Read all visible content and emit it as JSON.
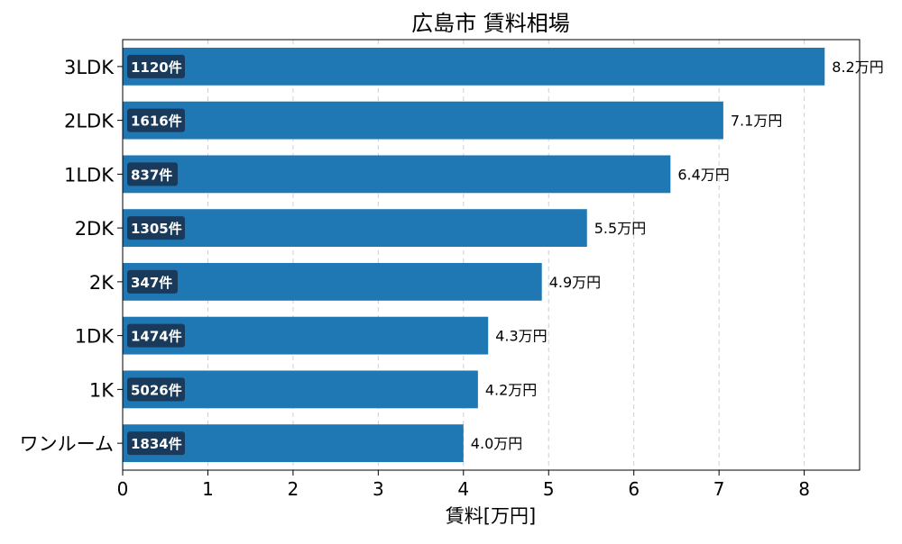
{
  "chart_data": {
    "type": "bar",
    "orientation": "horizontal",
    "title": "広島市 賃料相場",
    "xlabel": "賃料[万円]",
    "ylabel": "",
    "xlim": [
      0,
      8.65
    ],
    "xticks": [
      0,
      1,
      2,
      3,
      4,
      5,
      6,
      7,
      8
    ],
    "grid": "vertical-dashed",
    "bar_color": "#1f77b4",
    "badge_color": "#1a3a5c",
    "categories": [
      "3LDK",
      "2LDK",
      "1LDK",
      "2DK",
      "2K",
      "1DK",
      "1K",
      "ワンルーム"
    ],
    "values": [
      8.24,
      7.05,
      6.43,
      5.45,
      4.92,
      4.29,
      4.17,
      4.0
    ],
    "value_labels": [
      "8.2万円",
      "7.1万円",
      "6.4万円",
      "5.5万円",
      "4.9万円",
      "4.3万円",
      "4.2万円",
      "4.0万円"
    ],
    "count_labels": [
      "1120件",
      "1616件",
      "837件",
      "1305件",
      "347件",
      "1474件",
      "5026件",
      "1834件"
    ]
  }
}
